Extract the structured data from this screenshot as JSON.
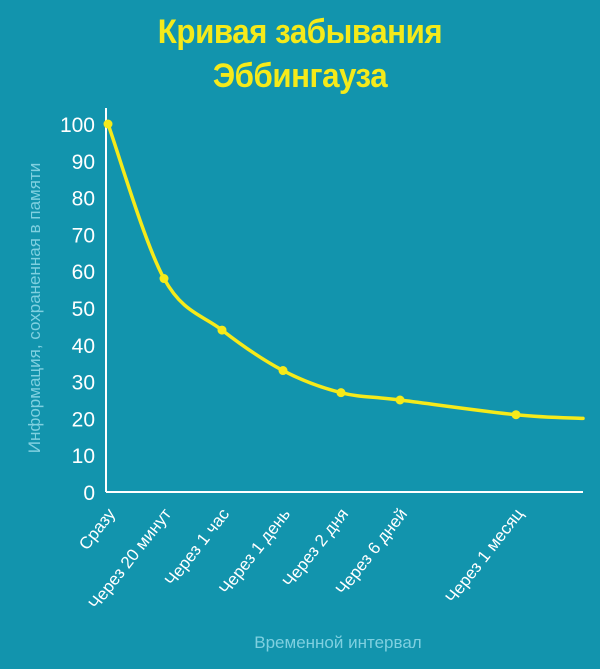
{
  "chart_data": {
    "type": "line",
    "title": [
      "Кривая забывания",
      "Эббингауза"
    ],
    "xlabel": "Временной интервал",
    "ylabel": "Информация, сохраненная в памяти",
    "ylim": [
      0,
      100
    ],
    "yticks": [
      0,
      10,
      20,
      30,
      40,
      50,
      60,
      70,
      80,
      90,
      100
    ],
    "categories": [
      "Сразу",
      "Через 20 минут",
      "Через 1 час",
      "Через 1 день",
      "Через 2 дня",
      "Через 6 дней",
      "Через 1 месяц"
    ],
    "values": [
      100,
      58,
      44,
      33,
      27,
      25,
      21
    ],
    "tail_value": 20,
    "grid": false,
    "colors": {
      "background": "#1294ad",
      "line": "#f5ea1a",
      "title": "#f5ea1a",
      "axis": "#ffffff",
      "axis_label": "#7fd0e0"
    }
  }
}
